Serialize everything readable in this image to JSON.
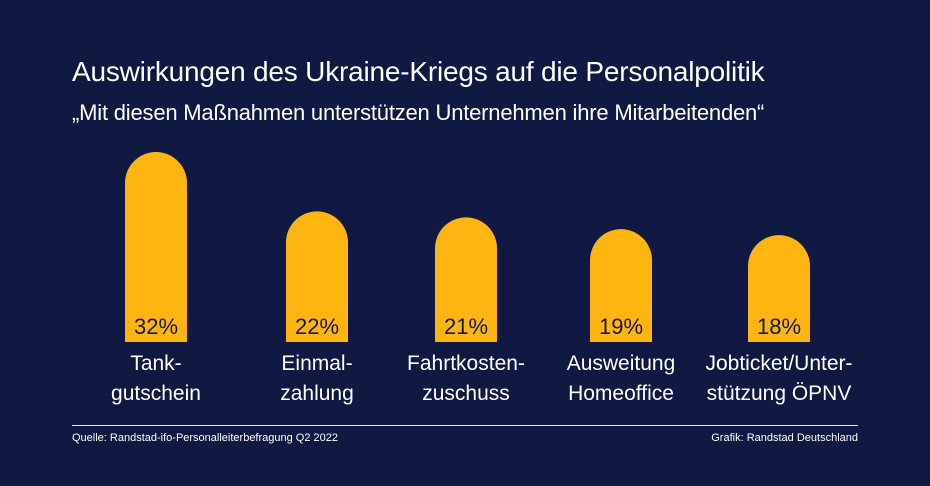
{
  "colors": {
    "background": "#0f1941",
    "bar": "#ffb511",
    "text": "#ffffff"
  },
  "footer": {
    "source": "Quelle: Randstad-ifo-Personalleiterbefragung Q2 2022",
    "credit": "Grafik: Randstad Deutschland"
  },
  "chart_data": {
    "type": "bar",
    "title": "Auswirkungen des Ukraine-Kriegs auf die Personalpolitik",
    "subtitle": "„Mit diesen Maßnahmen unterstützen Unternehmen ihre Mitarbeitenden“",
    "categories": [
      [
        "Tank-",
        "gutschein"
      ],
      [
        "Einmal-",
        "zahlung"
      ],
      [
        "Fahrtkosten-",
        "zuschuss"
      ],
      [
        "Ausweitung",
        "Homeoffice"
      ],
      [
        "Jobticket/Unter-",
        "stützung ÖPNV"
      ]
    ],
    "values": [
      32,
      22,
      21,
      19,
      18
    ],
    "value_labels": [
      "32%",
      "22%",
      "21%",
      "19%",
      "18%"
    ],
    "unit": "%",
    "grid": false,
    "legend": "none"
  }
}
